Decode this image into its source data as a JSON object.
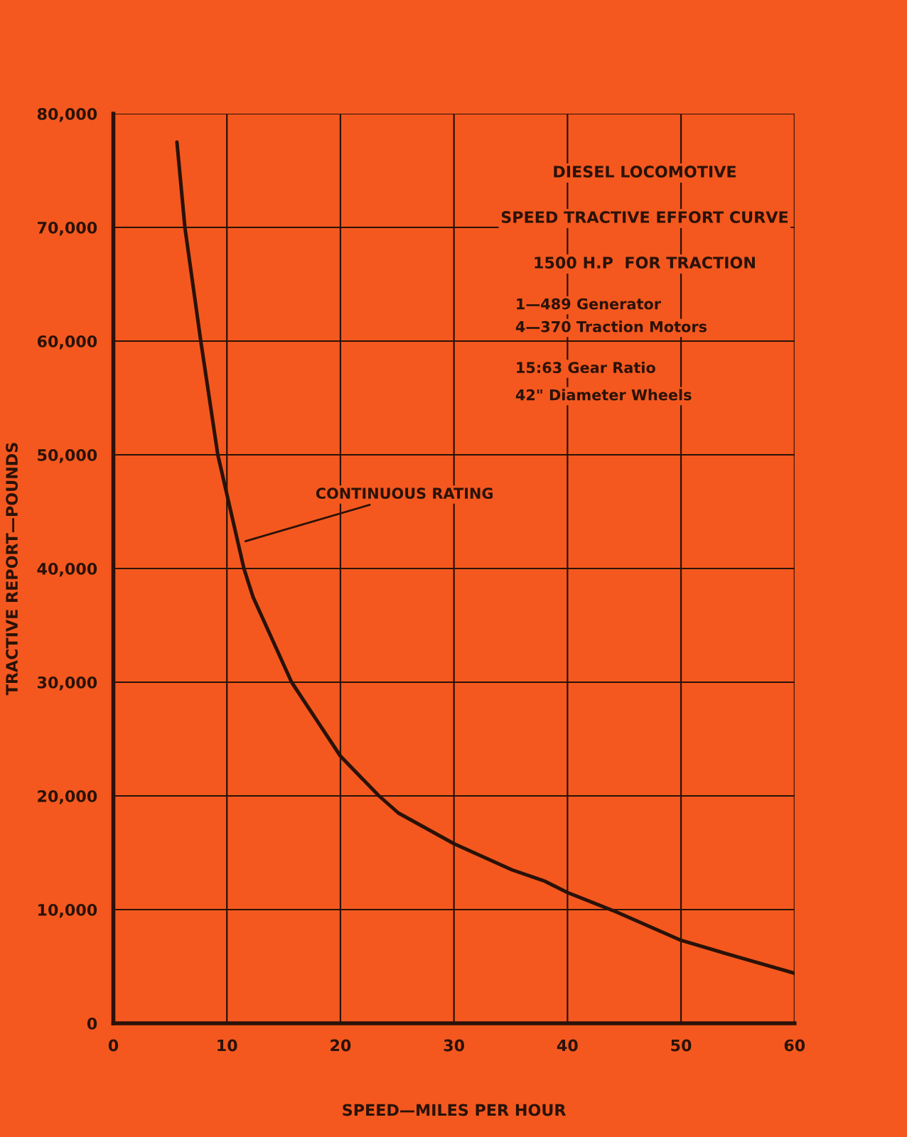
{
  "chart_data": {
    "type": "line",
    "title": "DIESEL LOCOMOTIVE",
    "subtitle": "SPEED TRACTIVE EFFORT CURVE",
    "xlabel": "SPEED—MILES PER HOUR",
    "ylabel": "TRACTIVE REPORT—POUNDS",
    "annotations": [
      "1500 H.P  FOR TRACTION",
      "1—489 Generator",
      "4—370 Traction Motors",
      "15:63 Gear Ratio",
      "42\" Diameter Wheels",
      {
        "text": "CONTINUOUS RATING",
        "x": 11.3,
        "y": 42300
      }
    ],
    "series": [
      {
        "color": "#2a1208",
        "x": [
          5.6,
          6.3,
          7.7,
          9.2,
          11.5,
          12.3,
          15.7,
          20,
          23.4,
          25.1,
          30,
          35.1,
          38,
          40,
          44.3,
          50,
          55.1,
          60
        ],
        "values": [
          77500,
          70000,
          60000,
          50000,
          40000,
          37500,
          30000,
          23500,
          20000,
          18500,
          15800,
          13500,
          12500,
          11500,
          9800,
          7300,
          5800,
          4400
        ]
      }
    ],
    "xlim": [
      0,
      60
    ],
    "ylim": [
      0,
      80000
    ],
    "xticks": [
      0,
      10,
      20,
      30,
      40,
      50,
      60
    ],
    "yticks": [
      0,
      {
        "value": 10000,
        "label": "10,000"
      },
      {
        "value": 20000,
        "label": "20,000"
      },
      {
        "value": 30000,
        "label": "30,000"
      },
      {
        "value": 40000,
        "label": "40,000"
      },
      {
        "value": 50000,
        "label": "50,000"
      },
      {
        "value": 60000,
        "label": "60,000"
      },
      {
        "value": 70000,
        "label": "70,000"
      },
      {
        "value": 80000,
        "label": "80,000"
      }
    ],
    "grid": true,
    "legend": false
  }
}
